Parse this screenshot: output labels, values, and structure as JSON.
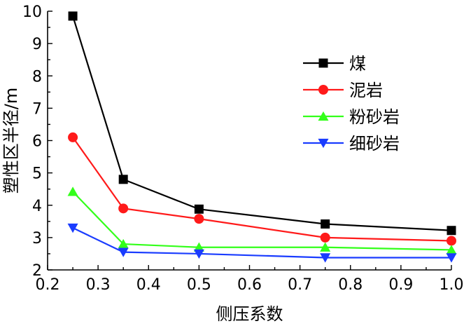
{
  "chart_data": {
    "type": "line",
    "title": "",
    "xlabel": "侧压系数",
    "ylabel": "塑性区半径/m",
    "xlim": [
      0.2,
      1.0
    ],
    "ylim": [
      2,
      10
    ],
    "x_ticks": [
      "0.2",
      "0.3",
      "0.4",
      "0.5",
      "0.6",
      "0.7",
      "0.8",
      "0.9",
      "1.0"
    ],
    "y_ticks": [
      "2",
      "3",
      "4",
      "5",
      "6",
      "7",
      "8",
      "9",
      "10"
    ],
    "x": [
      0.25,
      0.35,
      0.5,
      0.75,
      1.0
    ],
    "grid": false,
    "legend_position": "top-right",
    "series": [
      {
        "name": "煤",
        "color": "#000000",
        "marker": "square",
        "values": [
          9.85,
          4.8,
          3.88,
          3.42,
          3.22
        ]
      },
      {
        "name": "泥岩",
        "color": "#ff1a1a",
        "marker": "circle",
        "values": [
          6.1,
          3.9,
          3.58,
          3.0,
          2.9
        ]
      },
      {
        "name": "粉砂岩",
        "color": "#33ff1a",
        "marker": "triangle-up",
        "values": [
          4.42,
          2.8,
          2.7,
          2.7,
          2.62
        ]
      },
      {
        "name": "细砂岩",
        "color": "#1a3cff",
        "marker": "triangle-down",
        "values": [
          3.3,
          2.55,
          2.5,
          2.38,
          2.38
        ]
      }
    ]
  }
}
